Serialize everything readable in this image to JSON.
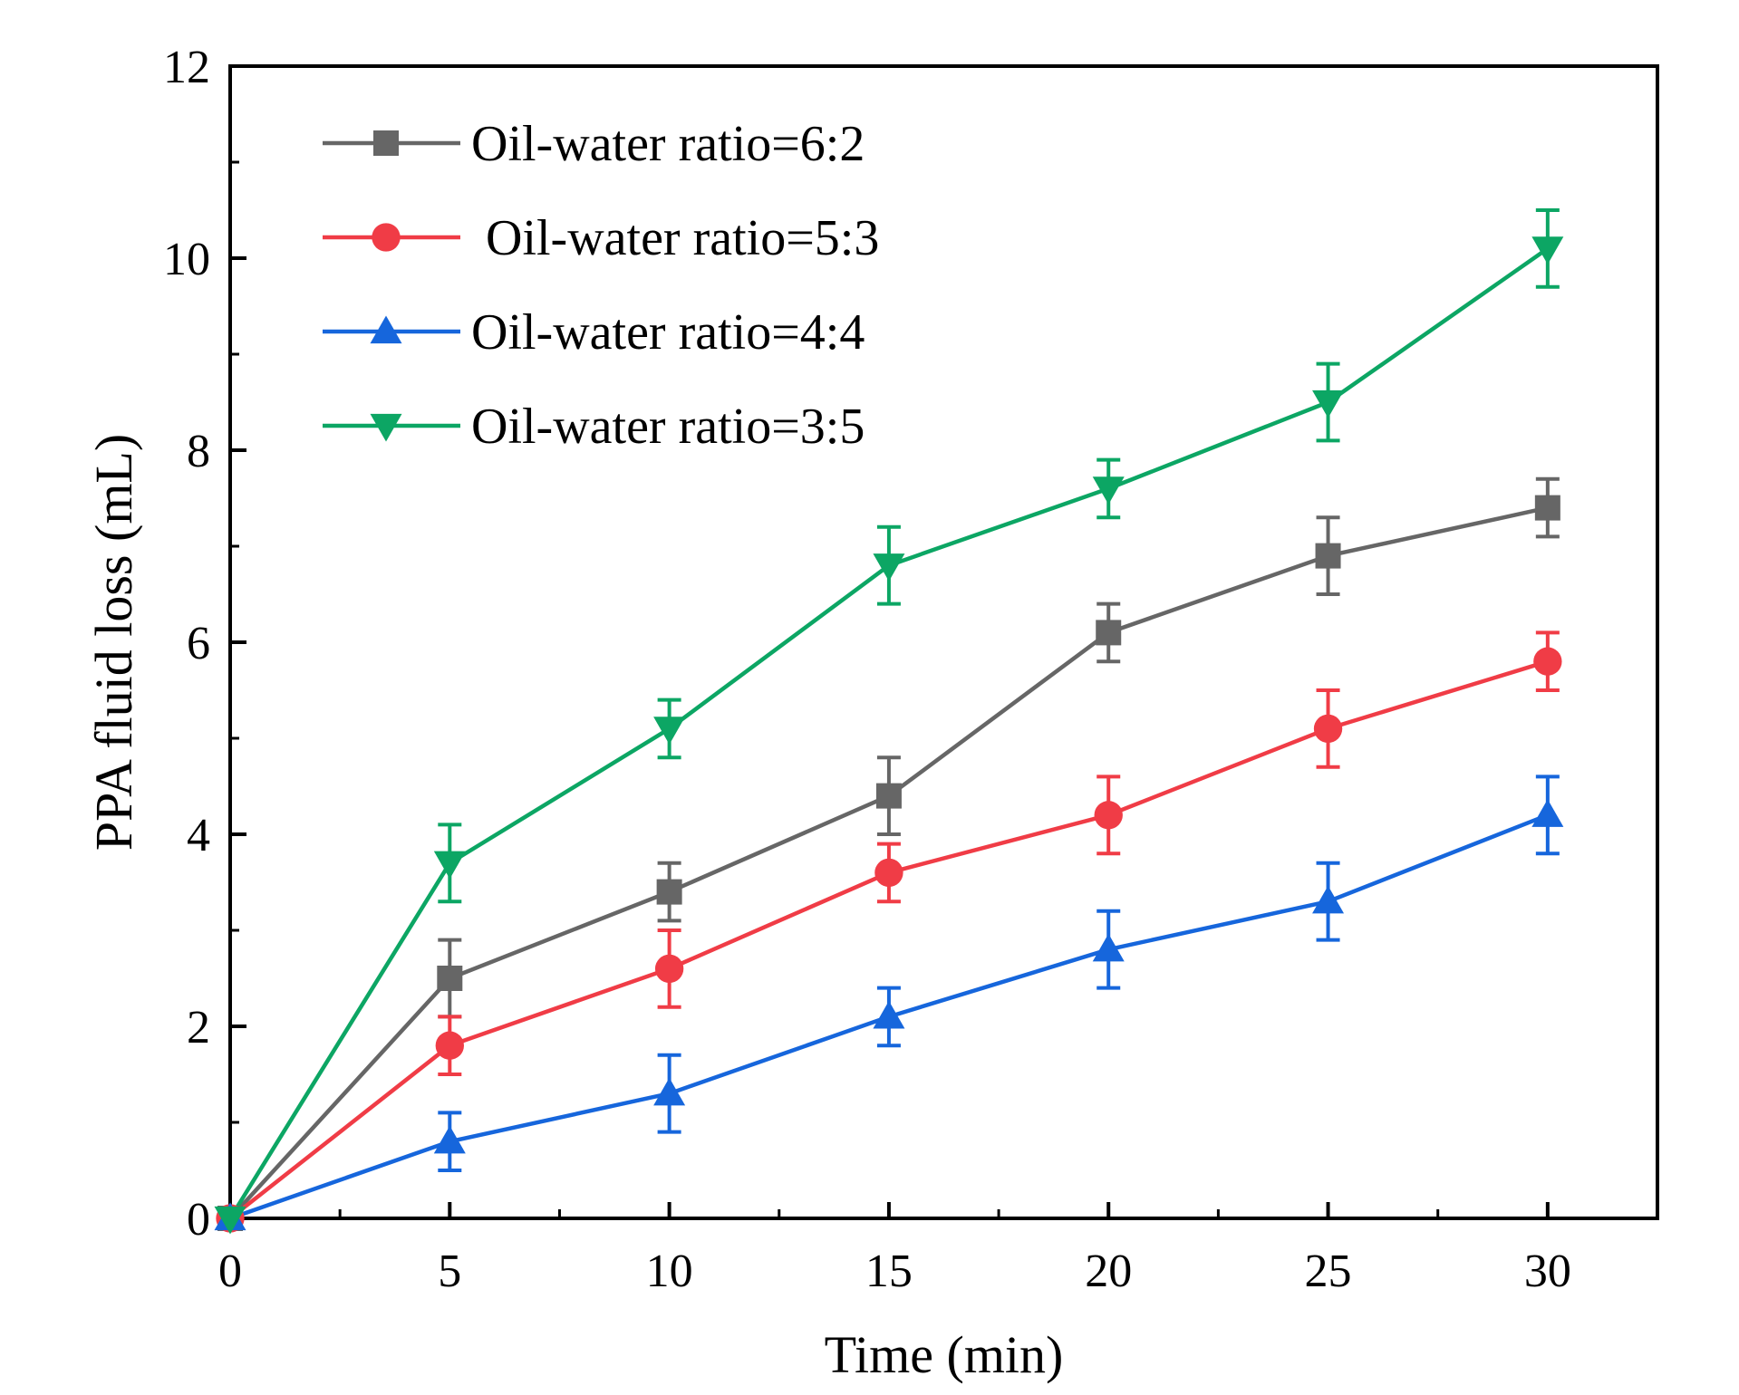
{
  "chart_data": {
    "type": "line",
    "title": "",
    "xlabel": "Time (min)",
    "ylabel": "PPA fluid loss (mL)",
    "xlim": [
      0,
      32.5
    ],
    "ylim": [
      0,
      12
    ],
    "xticks": [
      0,
      5,
      10,
      15,
      20,
      25,
      30
    ],
    "xtick_labels": [
      "0",
      "5",
      "10",
      "15",
      "20",
      "25",
      "30"
    ],
    "yticks": [
      0,
      2,
      4,
      6,
      8,
      10,
      12
    ],
    "ytick_labels": [
      "0",
      "2",
      "4",
      "6",
      "8",
      "10",
      "12"
    ],
    "x_minor_ticks": [
      2.5,
      7.5,
      12.5,
      17.5,
      22.5,
      27.5
    ],
    "y_minor_ticks": [
      1,
      3,
      5,
      7,
      9,
      11
    ],
    "grid": false,
    "legend_position": "top-left",
    "x": [
      0,
      5,
      10,
      15,
      20,
      25,
      30
    ],
    "series": [
      {
        "name": "Oil-water ratio=6:2",
        "color": "#666666",
        "marker": "square",
        "values": [
          0,
          2.5,
          3.4,
          4.4,
          6.1,
          6.9,
          7.4
        ],
        "errors": [
          0,
          0.4,
          0.3,
          0.4,
          0.3,
          0.4,
          0.3
        ]
      },
      {
        "name": "Oil-water ratio=5:3",
        "color": "#f03c46",
        "marker": "circle",
        "values": [
          0,
          1.8,
          2.6,
          3.6,
          4.2,
          5.1,
          5.8
        ],
        "errors": [
          0,
          0.3,
          0.4,
          0.3,
          0.4,
          0.4,
          0.3
        ]
      },
      {
        "name": "Oil-water ratio=4:4",
        "color": "#1666dc",
        "marker": "triangle-up",
        "values": [
          0,
          0.8,
          1.3,
          2.1,
          2.8,
          3.3,
          4.2
        ],
        "errors": [
          0,
          0.3,
          0.4,
          0.3,
          0.4,
          0.4,
          0.4
        ]
      },
      {
        "name": "Oil-water ratio=3:5",
        "color": "#0ca664",
        "marker": "triangle-down",
        "values": [
          0,
          3.7,
          5.1,
          6.8,
          7.6,
          8.5,
          10.1
        ],
        "errors": [
          0,
          0.4,
          0.3,
          0.4,
          0.3,
          0.4,
          0.4
        ]
      }
    ]
  }
}
